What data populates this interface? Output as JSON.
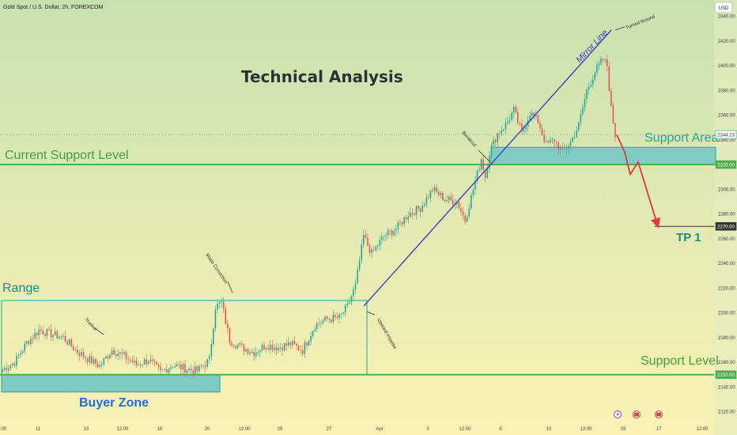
{
  "header": {
    "symbol_info": "Gold Spot / U.S. Dollar, 2h, FOREXCOM",
    "currency_button": "USD"
  },
  "annotations": {
    "title": "Technical Analysis",
    "current_support": "Current Support Level",
    "support_area": "Support Area",
    "support_level": "Support Level",
    "range": "Range",
    "buyer_zone": "Buyer Zone",
    "tp1": "TP 1",
    "mirror_line": "Mirror Line",
    "turned_around": "Turned Around",
    "breakout": "Breakout",
    "made_correction": "Made Correction",
    "traded": "Traded",
    "upward_impulse": "Upward Impulse"
  },
  "colors": {
    "bull": "#26a69a",
    "bear": "#ef5350",
    "green_line": "#4caf50",
    "zone_fill": "#80cbc4",
    "mirror_line": "#3f3fbf",
    "arrow": "#e53935"
  },
  "chart_data": {
    "type": "candlestick",
    "y_axis": {
      "range": [
        2114,
        2448
      ],
      "ticks": [
        2120,
        2140,
        2160,
        2180,
        2200,
        2220,
        2240,
        2260,
        2280,
        2300,
        2320,
        2340,
        2360,
        2380,
        2400,
        2420,
        2440
      ]
    },
    "x_axis": {
      "ticks": [
        ":00",
        "11",
        "13",
        "12:00",
        "18",
        "20",
        "12:00",
        "25",
        "27",
        "Apr",
        "3",
        "12:00",
        "8",
        "10",
        "12:00",
        "15",
        "17",
        "12:00"
      ]
    },
    "price_labels": [
      "2344.23",
      "2320.00",
      "2270.00",
      "2150.00"
    ],
    "levels": {
      "current_support": 2320,
      "support_level": 2150,
      "tp1": 2270,
      "current_price": 2344.23
    },
    "zones": {
      "range": [
        2150,
        2210
      ],
      "buyer_zone": [
        2136,
        2150
      ],
      "support_area": [
        2320,
        2334
      ]
    },
    "projection": [
      2344,
      2330,
      2312,
      2322,
      2270
    ],
    "anchors": [
      [
        0,
        2154
      ],
      [
        6,
        2160
      ],
      [
        12,
        2176
      ],
      [
        18,
        2186
      ],
      [
        24,
        2183
      ],
      [
        30,
        2180
      ],
      [
        36,
        2170
      ],
      [
        42,
        2163
      ],
      [
        48,
        2157
      ],
      [
        54,
        2170
      ],
      [
        60,
        2165
      ],
      [
        66,
        2158
      ],
      [
        72,
        2162
      ],
      [
        78,
        2152
      ],
      [
        84,
        2158
      ],
      [
        90,
        2155
      ],
      [
        96,
        2153
      ],
      [
        102,
        2162
      ],
      [
        105,
        2205
      ],
      [
        108,
        2208
      ],
      [
        112,
        2178
      ],
      [
        118,
        2172
      ],
      [
        124,
        2168
      ],
      [
        130,
        2174
      ],
      [
        136,
        2172
      ],
      [
        142,
        2175
      ],
      [
        148,
        2170
      ],
      [
        154,
        2190
      ],
      [
        160,
        2195
      ],
      [
        166,
        2196
      ],
      [
        170,
        2205
      ],
      [
        174,
        2222
      ],
      [
        178,
        2262
      ],
      [
        182,
        2248
      ],
      [
        188,
        2262
      ],
      [
        194,
        2268
      ],
      [
        200,
        2280
      ],
      [
        206,
        2285
      ],
      [
        212,
        2300
      ],
      [
        218,
        2292
      ],
      [
        224,
        2290
      ],
      [
        228,
        2275
      ],
      [
        232,
        2300
      ],
      [
        236,
        2325
      ],
      [
        238,
        2310
      ],
      [
        240,
        2330
      ],
      [
        244,
        2345
      ],
      [
        248,
        2352
      ],
      [
        252,
        2364
      ],
      [
        256,
        2345
      ],
      [
        260,
        2362
      ],
      [
        264,
        2355
      ],
      [
        268,
        2336
      ],
      [
        272,
        2340
      ],
      [
        276,
        2330
      ],
      [
        280,
        2338
      ],
      [
        284,
        2352
      ],
      [
        288,
        2380
      ],
      [
        292,
        2395
      ],
      [
        296,
        2405
      ],
      [
        298,
        2400
      ],
      [
        300,
        2365
      ],
      [
        302,
        2344
      ]
    ]
  }
}
